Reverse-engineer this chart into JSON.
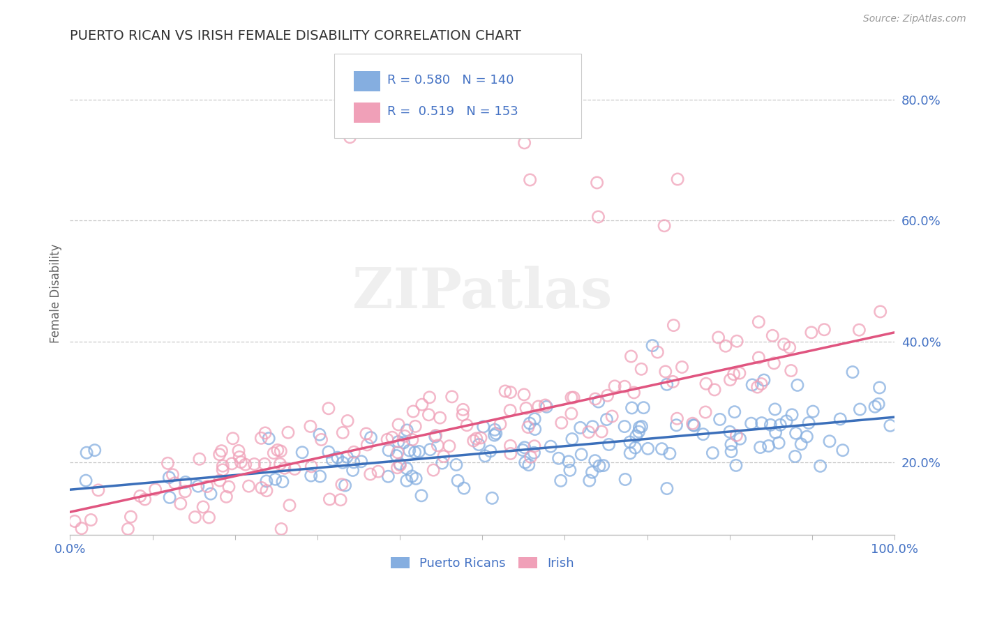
{
  "title": "PUERTO RICAN VS IRISH FEMALE DISABILITY CORRELATION CHART",
  "source_text": "Source: ZipAtlas.com",
  "ylabel": "Female Disability",
  "xlim": [
    0.0,
    1.0
  ],
  "ylim": [
    0.08,
    0.88
  ],
  "yticks": [
    0.2,
    0.4,
    0.6,
    0.8
  ],
  "xticks": [
    0.0,
    0.1,
    0.2,
    0.3,
    0.4,
    0.5,
    0.6,
    0.7,
    0.8,
    0.9,
    1.0
  ],
  "blue_color": "#85aee0",
  "pink_color": "#f0a0b8",
  "blue_line_color": "#3b6fba",
  "pink_line_color": "#e05580",
  "legend_R_blue": "R = 0.580",
  "legend_N_blue": "N = 140",
  "legend_R_pink": "R =  0.519",
  "legend_N_pink": "N = 153",
  "label_blue": "Puerto Ricans",
  "label_pink": "Irish",
  "title_color": "#333333",
  "tick_color": "#4472c4",
  "watermark": "ZIPatlas",
  "background_color": "#ffffff",
  "blue_seed": 42,
  "pink_seed": 7,
  "blue_N": 140,
  "pink_N": 153,
  "blue_line_x0": 0.0,
  "blue_line_y0": 0.155,
  "blue_line_x1": 1.0,
  "blue_line_y1": 0.275,
  "pink_line_x0": 0.0,
  "pink_line_y0": 0.118,
  "pink_line_x1": 1.0,
  "pink_line_y1": 0.415
}
